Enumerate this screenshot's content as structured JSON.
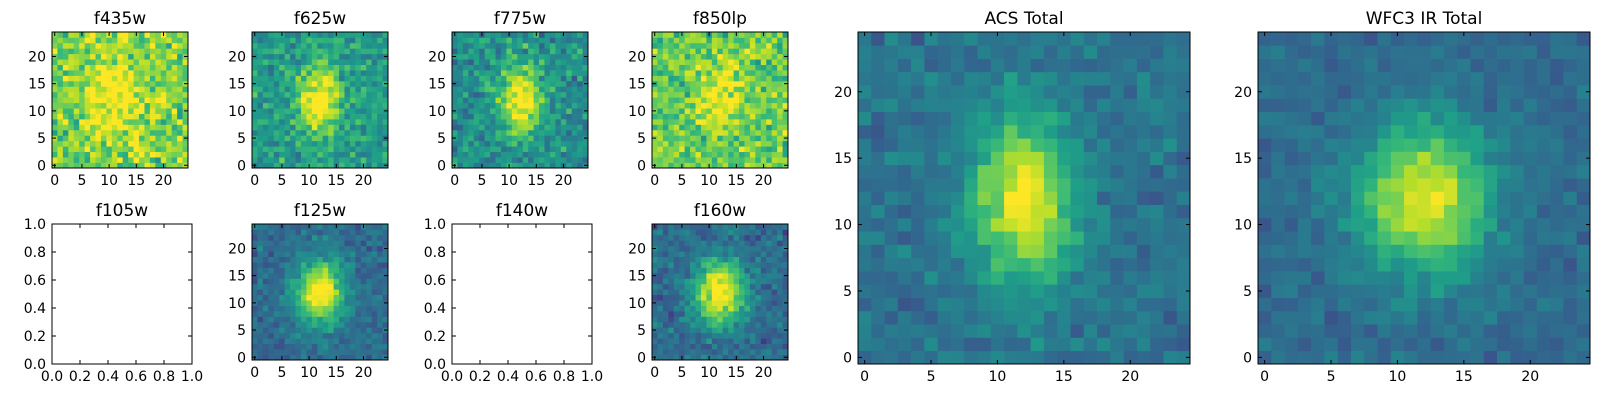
{
  "figure_type": "astronomical image cutout grid",
  "chart_data": [
    {
      "type": "heatmap",
      "title": "f435w",
      "has_image": true,
      "xlim": [
        -0.5,
        24.5
      ],
      "ylim": [
        -0.5,
        24.5
      ],
      "xticks": [
        0,
        5,
        10,
        15,
        20
      ],
      "yticks": [
        0,
        5,
        10,
        15,
        20
      ],
      "center": [
        11,
        13
      ],
      "spread": [
        3.2,
        5.0
      ],
      "peak": 0.25,
      "background": 0.8,
      "noise": 0.22
    },
    {
      "type": "heatmap",
      "title": "f625w",
      "has_image": true,
      "xlim": [
        -0.5,
        24.5
      ],
      "ylim": [
        -0.5,
        24.5
      ],
      "xticks": [
        0,
        5,
        10,
        15,
        20
      ],
      "yticks": [
        0,
        5,
        10,
        15,
        20
      ],
      "center": [
        12,
        12
      ],
      "spread": [
        2.6,
        4.5
      ],
      "peak": 0.5,
      "background": 0.55,
      "noise": 0.18
    },
    {
      "type": "heatmap",
      "title": "f775w",
      "has_image": true,
      "xlim": [
        -0.5,
        24.5
      ],
      "ylim": [
        -0.5,
        24.5
      ],
      "xticks": [
        0,
        5,
        10,
        15,
        20
      ],
      "yticks": [
        0,
        5,
        10,
        15,
        20
      ],
      "center": [
        12,
        12
      ],
      "spread": [
        2.8,
        4.5
      ],
      "peak": 0.55,
      "background": 0.5,
      "noise": 0.18
    },
    {
      "type": "heatmap",
      "title": "f850lp",
      "has_image": true,
      "xlim": [
        -0.5,
        24.5
      ],
      "ylim": [
        -0.5,
        24.5
      ],
      "xticks": [
        0,
        5,
        10,
        15,
        20
      ],
      "yticks": [
        0,
        5,
        10,
        15,
        20
      ],
      "center": [
        12,
        13
      ],
      "spread": [
        3.0,
        4.5
      ],
      "peak": 0.3,
      "background": 0.75,
      "noise": 0.22
    },
    {
      "type": "heatmap",
      "title": "f105w",
      "has_image": false,
      "xlim": [
        0,
        1
      ],
      "ylim": [
        0,
        1
      ],
      "xticks": [
        "0.0",
        "0.2",
        "0.4",
        "0.6",
        "0.8",
        "1.0"
      ],
      "yticks": [
        "0.0",
        "0.2",
        "0.4",
        "0.6",
        "0.8",
        "1.0"
      ]
    },
    {
      "type": "heatmap",
      "title": "f125w",
      "has_image": true,
      "xlim": [
        -0.5,
        24.5
      ],
      "ylim": [
        -0.5,
        24.5
      ],
      "xticks": [
        0,
        5,
        10,
        15,
        20
      ],
      "yticks": [
        0,
        5,
        10,
        15,
        20
      ],
      "center": [
        12,
        12
      ],
      "spread": [
        3.2,
        4.0
      ],
      "peak": 0.7,
      "background": 0.35,
      "noise": 0.12
    },
    {
      "type": "heatmap",
      "title": "f140w",
      "has_image": false,
      "xlim": [
        0,
        1
      ],
      "ylim": [
        0,
        1
      ],
      "xticks": [
        "0.0",
        "0.2",
        "0.4",
        "0.6",
        "0.8",
        "1.0"
      ],
      "yticks": [
        "0.0",
        "0.2",
        "0.4",
        "0.6",
        "0.8",
        "1.0"
      ]
    },
    {
      "type": "heatmap",
      "title": "f160w",
      "has_image": true,
      "xlim": [
        -0.5,
        24.5
      ],
      "ylim": [
        -0.5,
        24.5
      ],
      "xticks": [
        0,
        5,
        10,
        15,
        20
      ],
      "yticks": [
        0,
        5,
        10,
        15,
        20
      ],
      "center": [
        12,
        12
      ],
      "spread": [
        3.2,
        4.2
      ],
      "peak": 0.7,
      "background": 0.35,
      "noise": 0.13
    },
    {
      "type": "heatmap",
      "title": "ACS Total",
      "has_image": true,
      "xlim": [
        -0.5,
        24.5
      ],
      "ylim": [
        -0.5,
        24.5
      ],
      "xticks": [
        0,
        5,
        10,
        15,
        20
      ],
      "yticks": [
        0,
        5,
        10,
        15,
        20
      ],
      "center": [
        12,
        12
      ],
      "spread": [
        2.8,
        4.3
      ],
      "peak": 0.6,
      "background": 0.38,
      "noise": 0.1
    },
    {
      "type": "heatmap",
      "title": "WFC3 IR Total",
      "has_image": true,
      "xlim": [
        -0.5,
        24.5
      ],
      "ylim": [
        -0.5,
        24.5
      ],
      "xticks": [
        0,
        5,
        10,
        15,
        20
      ],
      "yticks": [
        0,
        5,
        10,
        15,
        20
      ],
      "center": [
        12,
        12
      ],
      "spread": [
        3.4,
        4.0
      ],
      "peak": 0.62,
      "background": 0.35,
      "noise": 0.08
    }
  ],
  "colormap": [
    "#440154",
    "#482878",
    "#3e4989",
    "#31688e",
    "#26828e",
    "#1f9e89",
    "#35b779",
    "#6ece58",
    "#b5de2b",
    "#fde725"
  ]
}
